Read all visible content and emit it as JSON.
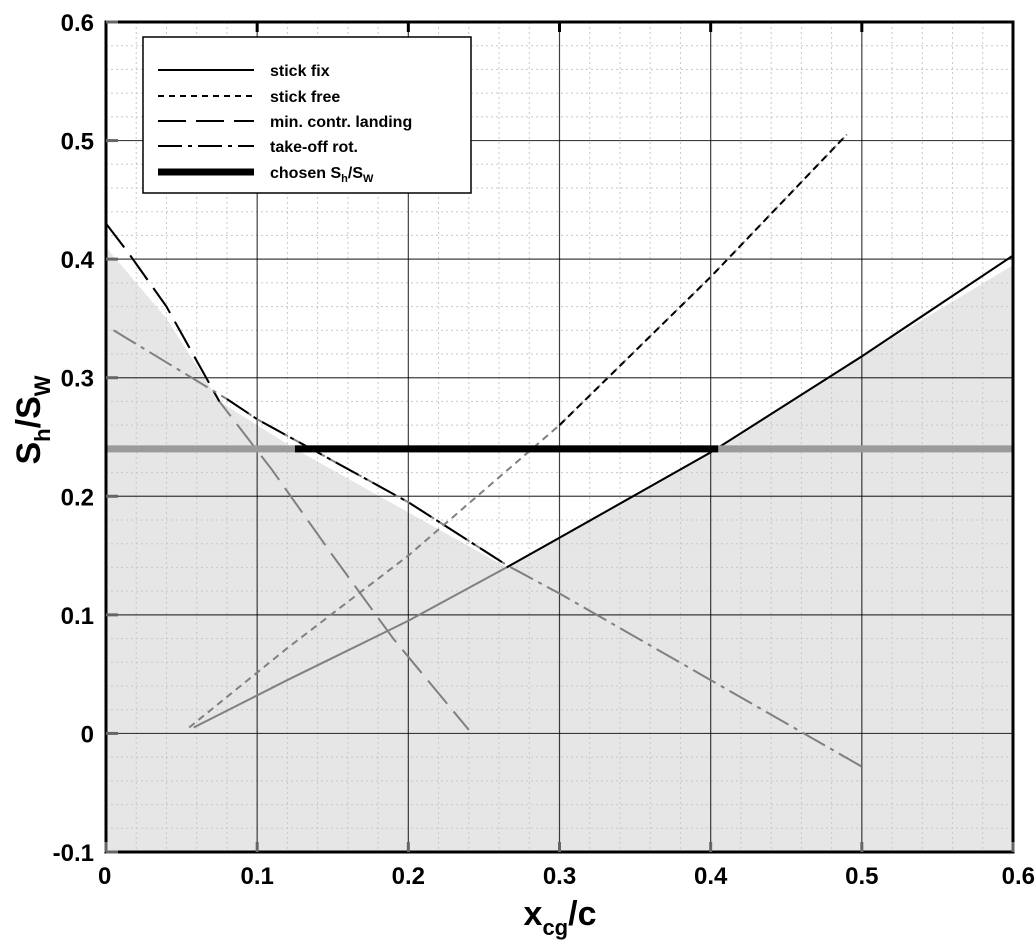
{
  "chart_data": {
    "type": "line",
    "xlabel": {
      "main": "x",
      "sub": "cg",
      "suffix": "/c"
    },
    "ylabel": {
      "main": "S",
      "sub1": "h",
      "mid": "/S",
      "sub2": "W"
    },
    "xlim": [
      0,
      0.6
    ],
    "ylim": [
      -0.1,
      0.6
    ],
    "x_ticks": [
      0,
      0.1,
      0.2,
      0.3,
      0.4,
      0.5,
      0.6
    ],
    "x_tick_labels": [
      "0",
      "0.1",
      "0.2",
      "0.3",
      "0.4",
      "0.5",
      "0.6"
    ],
    "y_ticks": [
      -0.1,
      0,
      0.1,
      0.2,
      0.3,
      0.4,
      0.5,
      0.6
    ],
    "y_tick_labels": [
      "-0.1",
      "0",
      "0.1",
      "0.2",
      "0.3",
      "0.4",
      "0.5",
      "0.6"
    ],
    "grid": true,
    "minor_grid": true,
    "legend_position": "top-left",
    "series": [
      {
        "name": "stick fix",
        "style": "solid",
        "points": [
          [
            0.058,
            0.005
          ],
          [
            0.12,
            0.045
          ],
          [
            0.2,
            0.095
          ],
          [
            0.265,
            0.14
          ],
          [
            0.3,
            0.165
          ],
          [
            0.4,
            0.237
          ],
          [
            0.5,
            0.318
          ],
          [
            0.6,
            0.403
          ]
        ]
      },
      {
        "name": "stick free",
        "style": "dotted",
        "points": [
          [
            0.055,
            0.005
          ],
          [
            0.12,
            0.072
          ],
          [
            0.2,
            0.15
          ],
          [
            0.3,
            0.26
          ],
          [
            0.4,
            0.385
          ],
          [
            0.49,
            0.505
          ]
        ]
      },
      {
        "name": "min. contr. landing",
        "style": "long-dash",
        "points": [
          [
            0.0,
            0.43
          ],
          [
            0.015,
            0.405
          ],
          [
            0.04,
            0.36
          ],
          [
            0.075,
            0.28
          ],
          [
            0.11,
            0.222
          ],
          [
            0.15,
            0.15
          ],
          [
            0.19,
            0.08
          ],
          [
            0.24,
            0.003
          ]
        ]
      },
      {
        "name": "take-off rot.",
        "style": "dash-dot",
        "points": [
          [
            0.005,
            0.34
          ],
          [
            0.08,
            0.282
          ],
          [
            0.1,
            0.265
          ],
          [
            0.2,
            0.195
          ],
          [
            0.265,
            0.142
          ],
          [
            0.3,
            0.118
          ],
          [
            0.4,
            0.045
          ],
          [
            0.5,
            -0.028
          ]
        ]
      },
      {
        "name": "chosen S_h/S_W",
        "legend_label": {
          "main": "chosen S",
          "sub1": "h",
          "mid": "/S",
          "sub2": "W"
        },
        "style": "thick",
        "y": 0.24,
        "x_range": [
          0.0,
          0.6
        ],
        "highlight_x_range": [
          0.125,
          0.405
        ]
      }
    ],
    "shaded_region": {
      "description_color": "#e6e6e6",
      "boundary_points": [
        [
          0.0,
          0.41
        ],
        [
          0.04,
          0.35
        ],
        [
          0.075,
          0.28
        ],
        [
          0.125,
          0.24
        ],
        [
          0.265,
          0.14
        ],
        [
          0.3,
          0.165
        ],
        [
          0.4,
          0.237
        ],
        [
          0.5,
          0.318
        ],
        [
          0.6,
          0.395
        ]
      ]
    }
  },
  "colors": {
    "line_dark": "#000000",
    "line_light": "#808080",
    "shade": "#e6e6e6",
    "grid_major": "#000000",
    "grid_minor": "#c8c8c8",
    "chosen_dark": "#000000",
    "chosen_light": "#9a9a9a"
  }
}
